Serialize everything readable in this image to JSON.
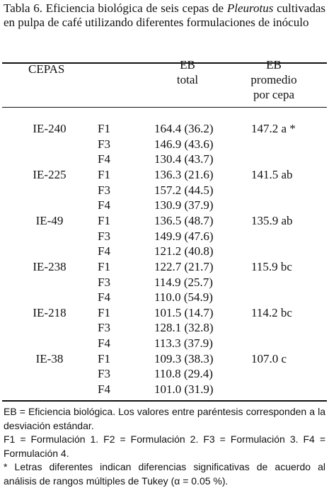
{
  "caption": {
    "prefix": "Tabla 6. Eficiencia biológica de seis cepas de",
    "italic": "Pleurotus",
    "suffix": "cultivadas en pulpa de café utilizando diferentes formulaciones de inóculo"
  },
  "table": {
    "headers": {
      "cepas": "CEPAS",
      "eb_total": [
        "EB",
        "total"
      ],
      "eb_promedio": [
        "EB",
        "promedio",
        "por cepa"
      ]
    },
    "groups": [
      {
        "cepa": "IE-240",
        "promedio": "147.2 a *",
        "rows": [
          [
            "F1",
            "164.4 (36.2)"
          ],
          [
            "F3",
            "146.9 (43.6)"
          ],
          [
            "F4",
            "130.4 (43.7)"
          ]
        ]
      },
      {
        "cepa": "IE-225",
        "promedio": "141.5 ab",
        "rows": [
          [
            "F1",
            "136.3 (21.6)"
          ],
          [
            "F3",
            "157.2 (44.5)"
          ],
          [
            "F4",
            "130.9 (37.9)"
          ]
        ]
      },
      {
        "cepa": "IE-49",
        "promedio": "135.9 ab",
        "rows": [
          [
            "F1",
            "136.5 (48.7)"
          ],
          [
            "F3",
            "149.9 (47.6)"
          ],
          [
            "F4",
            "121.2 (40.8)"
          ]
        ]
      },
      {
        "cepa": "IE-238",
        "promedio": "115.9 bc",
        "rows": [
          [
            "F1",
            "122.7 (21.7)"
          ],
          [
            "F3",
            "114.9 (25.7)"
          ],
          [
            "F4",
            "110.0 (54.9)"
          ]
        ]
      },
      {
        "cepa": "IE-218",
        "promedio": "114.2 bc",
        "rows": [
          [
            "F1",
            "101.5 (14.7)"
          ],
          [
            "F3",
            "128.1 (32.8)"
          ],
          [
            "F4",
            "113.3 (37.9)"
          ]
        ]
      },
      {
        "cepa": "IE-38",
        "promedio": "107.0 c",
        "rows": [
          [
            "F1",
            "109.3 (38.3)"
          ],
          [
            "F3",
            "110.8 (29.4)"
          ],
          [
            "F4",
            "101.0 (31.9)"
          ]
        ]
      }
    ]
  },
  "footnotes": [
    "EB = Eficiencia biológica. Los valores entre paréntesis corresponden a la desviación estándar.",
    "F1 = Formulación 1. F2 = Formulación 2. F3 = Formulación 3. F4 = Formulación 4.",
    "* Letras diferentes indican diferencias significativas de acuerdo al análisis de rangos múltiples de Tukey (α = 0.05 %)."
  ]
}
